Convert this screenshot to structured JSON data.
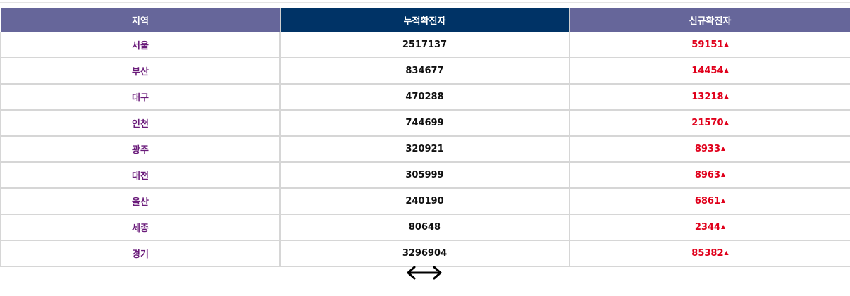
{
  "table": {
    "headers": {
      "region": "지역",
      "total": "누적확진자",
      "new": "신규확진자"
    },
    "up_symbol": "▲",
    "rows": [
      {
        "region": "서울",
        "total": "2517137",
        "new": "59151"
      },
      {
        "region": "부산",
        "total": "834677",
        "new": "14454"
      },
      {
        "region": "대구",
        "total": "470288",
        "new": "13218"
      },
      {
        "region": "인천",
        "total": "744699",
        "new": "21570"
      },
      {
        "region": "광주",
        "total": "320921",
        "new": "8933"
      },
      {
        "region": "대전",
        "total": "305999",
        "new": "8963"
      },
      {
        "region": "울산",
        "total": "240190",
        "new": "6861"
      },
      {
        "region": "세종",
        "total": "80648",
        "new": "2344"
      },
      {
        "region": "경기",
        "total": "3296904",
        "new": "85382"
      }
    ]
  },
  "icons": {
    "up_arrow": "triangle-up-icon",
    "scroll_hint": "left-right-arrow-icon"
  },
  "colors": {
    "header_purple": "#66669a",
    "header_navy": "#003366",
    "region_text": "#6a1b7a",
    "new_cases_text": "#e0001b"
  }
}
